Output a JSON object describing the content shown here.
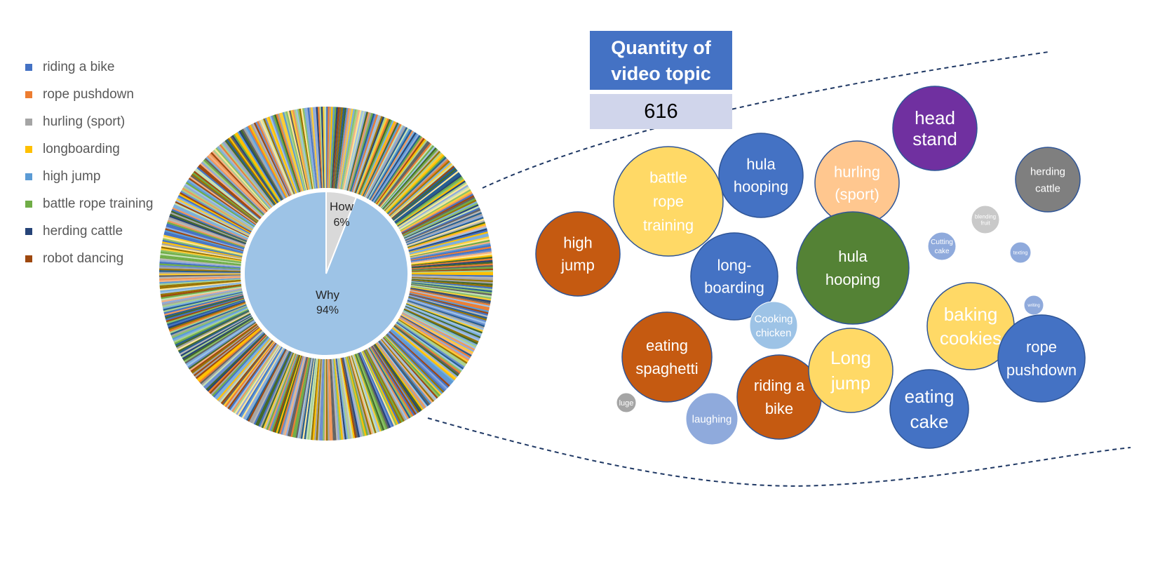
{
  "chart_data": [
    {
      "type": "pie",
      "subtype": "sunburst",
      "inner_ring": [
        {
          "label": "How",
          "percent": "6%",
          "value": 6,
          "color": "#d9d9d9"
        },
        {
          "label": "Why",
          "percent": "94%",
          "value": 94,
          "color": "#9dc3e6"
        }
      ],
      "outer_ring": {
        "description_count": 616,
        "palette": [
          "#4472c4",
          "#ed7d31",
          "#a5a5a5",
          "#ffc000",
          "#5b9bd5",
          "#70ad47",
          "#264478",
          "#9e480e",
          "#636363",
          "#997300",
          "#255e91",
          "#43682b",
          "#698ed0",
          "#f1975a",
          "#b7b7b7",
          "#ffcd33",
          "#7cafdd",
          "#8cc168",
          "#a9d18e",
          "#f4b183",
          "#ffe699",
          "#9dc3e6",
          "#c5e0b4",
          "#8faadc"
        ]
      },
      "legend": {
        "placement": "left",
        "entries": [
          {
            "label": "riding a bike",
            "color": "#4472c4"
          },
          {
            "label": "rope pushdown",
            "color": "#ed7d31"
          },
          {
            "label": "hurling (sport)",
            "color": "#a5a5a5"
          },
          {
            "label": "longboarding",
            "color": "#ffc000"
          },
          {
            "label": "high jump",
            "color": "#5b9bd5"
          },
          {
            "label": "battle rope training",
            "color": "#70ad47"
          },
          {
            "label": "herding cattle",
            "color": "#264478"
          },
          {
            "label": "robot dancing",
            "color": "#9e480e"
          }
        ]
      }
    },
    {
      "type": "bubble",
      "bubbles": [
        {
          "lines": [
            "head",
            "stand"
          ],
          "size": 60,
          "color": "#7030a0"
        },
        {
          "lines": [
            "herding",
            "cattle"
          ],
          "size": 46,
          "color": "#7f7f7f"
        },
        {
          "lines": [
            "hula",
            "hooping"
          ],
          "size": 60,
          "color": "#4472c4"
        },
        {
          "lines": [
            "hurling",
            "(sport)"
          ],
          "size": 60,
          "color": "#ffc78f"
        },
        {
          "lines": [
            "battle",
            "rope",
            "training"
          ],
          "size": 78,
          "color": "#ffd966"
        },
        {
          "lines": [
            "high",
            "jump"
          ],
          "size": 60,
          "color": "#c55a11"
        },
        {
          "lines": [
            "long-",
            "boarding"
          ],
          "size": 62,
          "color": "#4472c4"
        },
        {
          "lines": [
            "hula",
            "hooping"
          ],
          "size": 80,
          "color": "#548235"
        },
        {
          "lines": [
            "blending",
            "fruit"
          ],
          "size": 20,
          "color": "#c9c9c9"
        },
        {
          "lines": [
            "Cutting",
            "cake"
          ],
          "size": 20,
          "color": "#8faadc"
        },
        {
          "lines": [
            "texting"
          ],
          "size": 15,
          "color": "#8faadc"
        },
        {
          "lines": [
            "writing"
          ],
          "size": 14,
          "color": "#8faadc"
        },
        {
          "lines": [
            "baking",
            "cookies"
          ],
          "size": 62,
          "color": "#ffd966"
        },
        {
          "lines": [
            "rope",
            "pushdown"
          ],
          "size": 62,
          "color": "#4472c4"
        },
        {
          "lines": [
            "Cooking",
            "chicken"
          ],
          "size": 34,
          "color": "#9dc3e6"
        },
        {
          "lines": [
            "eating",
            "spaghetti"
          ],
          "size": 64,
          "color": "#c55a11"
        },
        {
          "lines": [
            "riding a",
            "bike"
          ],
          "size": 60,
          "color": "#c55a11"
        },
        {
          "lines": [
            "Long",
            "jump"
          ],
          "size": 60,
          "color": "#ffd966"
        },
        {
          "lines": [
            "eating",
            "cake"
          ],
          "size": 56,
          "color": "#4472c4"
        },
        {
          "lines": [
            "luge"
          ],
          "size": 14,
          "color": "#a5a5a5"
        },
        {
          "lines": [
            "laughing"
          ],
          "size": 37,
          "color": "#8faadc"
        }
      ]
    }
  ],
  "quantity": {
    "title_lines": [
      "Quantity of",
      "video topic"
    ],
    "value": "616"
  }
}
